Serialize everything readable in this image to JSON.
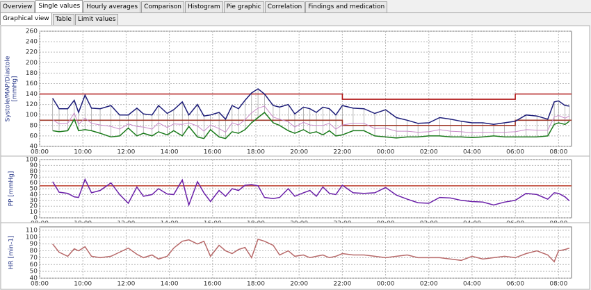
{
  "tabs": [
    "Overview",
    "Single values",
    "Hourly averages",
    "Comparison",
    "Histogram",
    "Pie graphic",
    "Correlation",
    "Findings and medication"
  ],
  "active_tab": 1,
  "subtabs": [
    "Graphical view",
    "Table",
    "Limit values"
  ],
  "active_subtab": 0,
  "chart_data": [
    {
      "type": "line",
      "ylabel_lines": [
        "Systole/MAP/Diastole",
        "[mmHg]"
      ],
      "grid": true,
      "whiskers": true,
      "whisker_color": "#a8a8a8",
      "x": [
        8.6,
        8.9,
        9.3,
        9.6,
        9.8,
        10.1,
        10.4,
        10.8,
        11.3,
        11.7,
        12.1,
        12.5,
        12.8,
        13.2,
        13.5,
        13.9,
        14.2,
        14.6,
        14.9,
        15.3,
        15.6,
        15.9,
        16.3,
        16.6,
        16.9,
        17.2,
        17.5,
        17.8,
        18.1,
        18.4,
        18.8,
        19.1,
        19.5,
        19.8,
        20.2,
        20.5,
        20.8,
        21.1,
        21.4,
        21.7,
        22,
        22.5,
        23,
        23.5,
        24,
        24.5,
        25,
        25.5,
        26,
        26.5,
        27,
        27.5,
        28,
        28.5,
        29,
        29.5,
        30,
        30.5,
        31,
        31.5,
        31.8,
        32,
        32.3,
        32.5
      ],
      "series": [
        {
          "color": "#1c1c78",
          "values": [
            132,
            112,
            112,
            128,
            105,
            138,
            113,
            112,
            118,
            100,
            100,
            113,
            102,
            100,
            118,
            103,
            110,
            125,
            100,
            120,
            98,
            100,
            105,
            92,
            118,
            112,
            128,
            142,
            150,
            140,
            118,
            115,
            120,
            102,
            115,
            112,
            105,
            115,
            112,
            100,
            118,
            113,
            112,
            103,
            110,
            95,
            90,
            84,
            85,
            95,
            92,
            88,
            85,
            85,
            82,
            85,
            88,
            100,
            98,
            92,
            125,
            127,
            118,
            117
          ]
        },
        {
          "color": "#c88ac8",
          "values": [
            91,
            83,
            84,
            104,
            82,
            94,
            84,
            81,
            78,
            73,
            83,
            78,
            77,
            73,
            85,
            76,
            83,
            82,
            85,
            79,
            69,
            81,
            74,
            67,
            85,
            81,
            91,
            104,
            113,
            117,
            96,
            92,
            87,
            77,
            86,
            81,
            80,
            80,
            84,
            73,
            81,
            84,
            84,
            74,
            75,
            69,
            69,
            67,
            68,
            72,
            69,
            68,
            66,
            67,
            67,
            67,
            68,
            72,
            71,
            71,
            96,
            99,
            94,
            98
          ]
        },
        {
          "color": "#1a7a1a",
          "values": [
            70,
            68,
            70,
            92,
            70,
            72,
            70,
            65,
            58,
            60,
            75,
            60,
            65,
            60,
            68,
            62,
            70,
            60,
            78,
            58,
            55,
            72,
            58,
            55,
            68,
            65,
            72,
            85,
            95,
            105,
            85,
            80,
            70,
            65,
            72,
            65,
            68,
            62,
            70,
            60,
            62,
            70,
            70,
            60,
            58,
            56,
            58,
            58,
            60,
            60,
            58,
            58,
            57,
            58,
            60,
            58,
            58,
            58,
            58,
            60,
            82,
            85,
            82,
            88
          ]
        }
      ],
      "limits": [
        {
          "color": "#b01818",
          "x": [
            8,
            22,
            22,
            30,
            30,
            32.6
          ],
          "values": [
            140,
            140,
            130,
            130,
            140,
            140
          ]
        },
        {
          "color": "#a03a2a",
          "x": [
            8,
            22,
            22,
            30,
            30,
            32.6
          ],
          "values": [
            90,
            90,
            80,
            80,
            90,
            90
          ]
        }
      ],
      "xlim": [
        8,
        32.6
      ],
      "ylim": [
        40,
        260
      ],
      "yticks": [
        40,
        60,
        80,
        100,
        120,
        140,
        160,
        180,
        200,
        220,
        240,
        260
      ],
      "xticks": [
        {
          "value": 8,
          "label": "08:00"
        },
        {
          "value": 10,
          "label": "10:00"
        },
        {
          "value": 12,
          "label": "12:00"
        },
        {
          "value": 14,
          "label": "14:00"
        },
        {
          "value": 16,
          "label": "16:00"
        },
        {
          "value": 18,
          "label": "18:00"
        },
        {
          "value": 20,
          "label": "20:00"
        },
        {
          "value": 22,
          "label": "22:00"
        },
        {
          "value": 24,
          "label": "00:00"
        },
        {
          "value": 26,
          "label": "02:00"
        },
        {
          "value": 28,
          "label": "04:00"
        },
        {
          "value": 30,
          "label": "06:00"
        },
        {
          "value": 32,
          "label": "08:00"
        }
      ]
    },
    {
      "type": "line",
      "ylabel_lines": [
        "PP [mmHg]"
      ],
      "grid": true,
      "whiskers": false,
      "x": [
        8.6,
        8.9,
        9.3,
        9.6,
        9.8,
        10.1,
        10.4,
        10.8,
        11.3,
        11.7,
        12.1,
        12.5,
        12.8,
        13.2,
        13.5,
        13.9,
        14.2,
        14.6,
        14.9,
        15.3,
        15.6,
        15.9,
        16.3,
        16.6,
        16.9,
        17.2,
        17.5,
        17.8,
        18.1,
        18.4,
        18.8,
        19.1,
        19.5,
        19.8,
        20.2,
        20.5,
        20.8,
        21.1,
        21.4,
        21.7,
        22,
        22.5,
        23,
        23.5,
        24,
        24.5,
        25,
        25.5,
        26,
        26.5,
        27,
        27.5,
        28,
        28.5,
        29,
        29.5,
        30,
        30.5,
        31,
        31.5,
        31.8,
        32,
        32.3,
        32.5
      ],
      "series": [
        {
          "color": "#6a1fa8",
          "values": [
            62,
            44,
            42,
            36,
            35,
            66,
            43,
            47,
            60,
            40,
            25,
            53,
            37,
            40,
            50,
            41,
            40,
            65,
            22,
            62,
            43,
            28,
            47,
            37,
            50,
            47,
            56,
            57,
            55,
            35,
            33,
            35,
            50,
            37,
            43,
            47,
            37,
            53,
            42,
            40,
            56,
            43,
            42,
            43,
            52,
            39,
            32,
            26,
            25,
            35,
            34,
            30,
            28,
            27,
            22,
            27,
            30,
            42,
            40,
            32,
            43,
            42,
            36,
            29
          ]
        }
      ],
      "limits": [
        {
          "color": "#c04a3a",
          "x": [
            8,
            32.6
          ],
          "values": [
            55,
            55
          ]
        }
      ],
      "xlim": [
        8,
        32.6
      ],
      "ylim": [
        0,
        100
      ],
      "yticks": [
        0,
        10,
        20,
        30,
        40,
        50,
        60,
        70,
        80,
        90,
        100
      ],
      "xticks": [
        {
          "value": 8,
          "label": "08:00"
        },
        {
          "value": 10,
          "label": "10:00"
        },
        {
          "value": 12,
          "label": "12:00"
        },
        {
          "value": 14,
          "label": "14:00"
        },
        {
          "value": 16,
          "label": "16:00"
        },
        {
          "value": 18,
          "label": "18:00"
        },
        {
          "value": 20,
          "label": "20:00"
        },
        {
          "value": 22,
          "label": "22:00"
        },
        {
          "value": 24,
          "label": "00:00"
        },
        {
          "value": 26,
          "label": "02:00"
        },
        {
          "value": 28,
          "label": "04:00"
        },
        {
          "value": 30,
          "label": "06:00"
        },
        {
          "value": 32,
          "label": "08:00"
        }
      ]
    },
    {
      "type": "line",
      "ylabel_lines": [
        "HR [min-1]"
      ],
      "grid": true,
      "whiskers": false,
      "x": [
        8.6,
        8.9,
        9.3,
        9.6,
        9.8,
        10.1,
        10.4,
        10.8,
        11.3,
        11.7,
        12.1,
        12.5,
        12.8,
        13.2,
        13.5,
        13.9,
        14.2,
        14.6,
        14.9,
        15.3,
        15.6,
        15.9,
        16.3,
        16.6,
        16.9,
        17.2,
        17.5,
        17.8,
        18.1,
        18.4,
        18.8,
        19.1,
        19.5,
        19.8,
        20.2,
        20.5,
        20.8,
        21.1,
        21.4,
        21.7,
        22,
        22.5,
        23,
        23.5,
        24,
        24.5,
        25,
        25.5,
        26,
        26.5,
        27,
        27.5,
        28,
        28.5,
        29,
        29.5,
        30,
        30.5,
        31,
        31.5,
        31.8,
        32,
        32.3,
        32.5
      ],
      "series": [
        {
          "color": "#b86a6a",
          "values": [
            90,
            78,
            72,
            83,
            80,
            86,
            72,
            70,
            72,
            78,
            84,
            75,
            70,
            74,
            68,
            72,
            84,
            94,
            96,
            90,
            94,
            72,
            88,
            80,
            76,
            82,
            85,
            70,
            97,
            94,
            88,
            74,
            80,
            72,
            74,
            70,
            72,
            74,
            70,
            72,
            76,
            74,
            74,
            72,
            70,
            72,
            74,
            70,
            70,
            70,
            68,
            66,
            72,
            68,
            70,
            72,
            70,
            76,
            80,
            74,
            64,
            80,
            82,
            84
          ]
        }
      ],
      "limits": [],
      "xlim": [
        8,
        32.6
      ],
      "ylim": [
        40,
        115
      ],
      "yticks": [
        40,
        50,
        60,
        70,
        80,
        90,
        100,
        110
      ],
      "xticks": [
        {
          "value": 8,
          "label": "08:00"
        },
        {
          "value": 10,
          "label": "10:00"
        },
        {
          "value": 12,
          "label": "12:00"
        },
        {
          "value": 14,
          "label": "14:00"
        },
        {
          "value": 16,
          "label": "16:00"
        },
        {
          "value": 18,
          "label": "18:00"
        },
        {
          "value": 20,
          "label": "20:00"
        },
        {
          "value": 22,
          "label": "22:00"
        },
        {
          "value": 24,
          "label": "00:00"
        },
        {
          "value": 26,
          "label": "02:00"
        },
        {
          "value": 28,
          "label": "04:00"
        },
        {
          "value": 30,
          "label": "06:00"
        },
        {
          "value": 32,
          "label": "08:00"
        }
      ]
    }
  ]
}
